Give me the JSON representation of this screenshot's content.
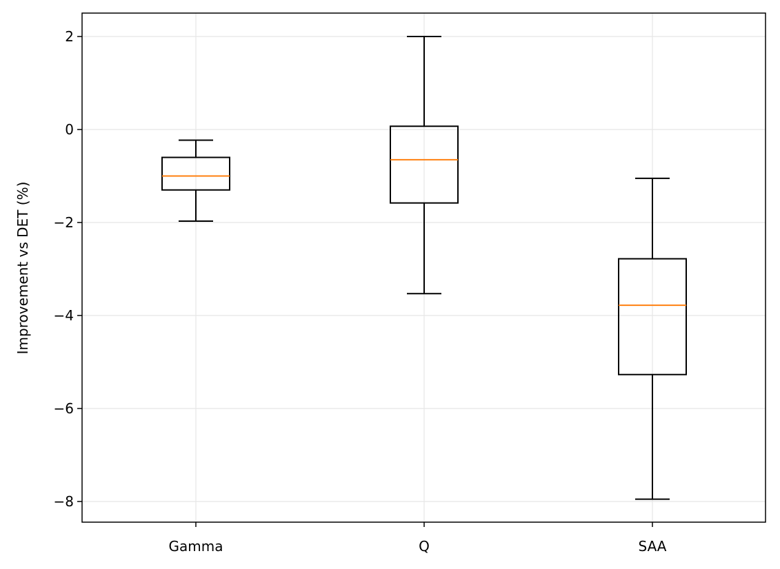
{
  "chart_data": {
    "type": "box",
    "title": "",
    "xlabel": "",
    "ylabel": "Improvement vs DET (%)",
    "ylim": [
      -8.45,
      2.5
    ],
    "yticks": [
      2,
      0,
      -2,
      -4,
      -6,
      -8
    ],
    "ytick_labels": [
      "2",
      "0",
      "−2",
      "−4",
      "−6",
      "−8"
    ],
    "grid": true,
    "categories": [
      "Gamma",
      "Q",
      "SAA"
    ],
    "boxes": [
      {
        "category": "Gamma",
        "whisker_low": -1.97,
        "q1": -1.3,
        "median": -1.0,
        "q3": -0.6,
        "whisker_high": -0.23
      },
      {
        "category": "Q",
        "whisker_low": -3.53,
        "q1": -1.58,
        "median": -0.65,
        "q3": 0.07,
        "whisker_high": 2.0
      },
      {
        "category": "SAA",
        "whisker_low": -7.95,
        "q1": -5.27,
        "median": -3.78,
        "q3": -2.78,
        "whisker_high": -1.05
      }
    ],
    "colors": {
      "box": "#000000",
      "median": "#ff7f0e",
      "grid": "#e5e5e5"
    }
  }
}
